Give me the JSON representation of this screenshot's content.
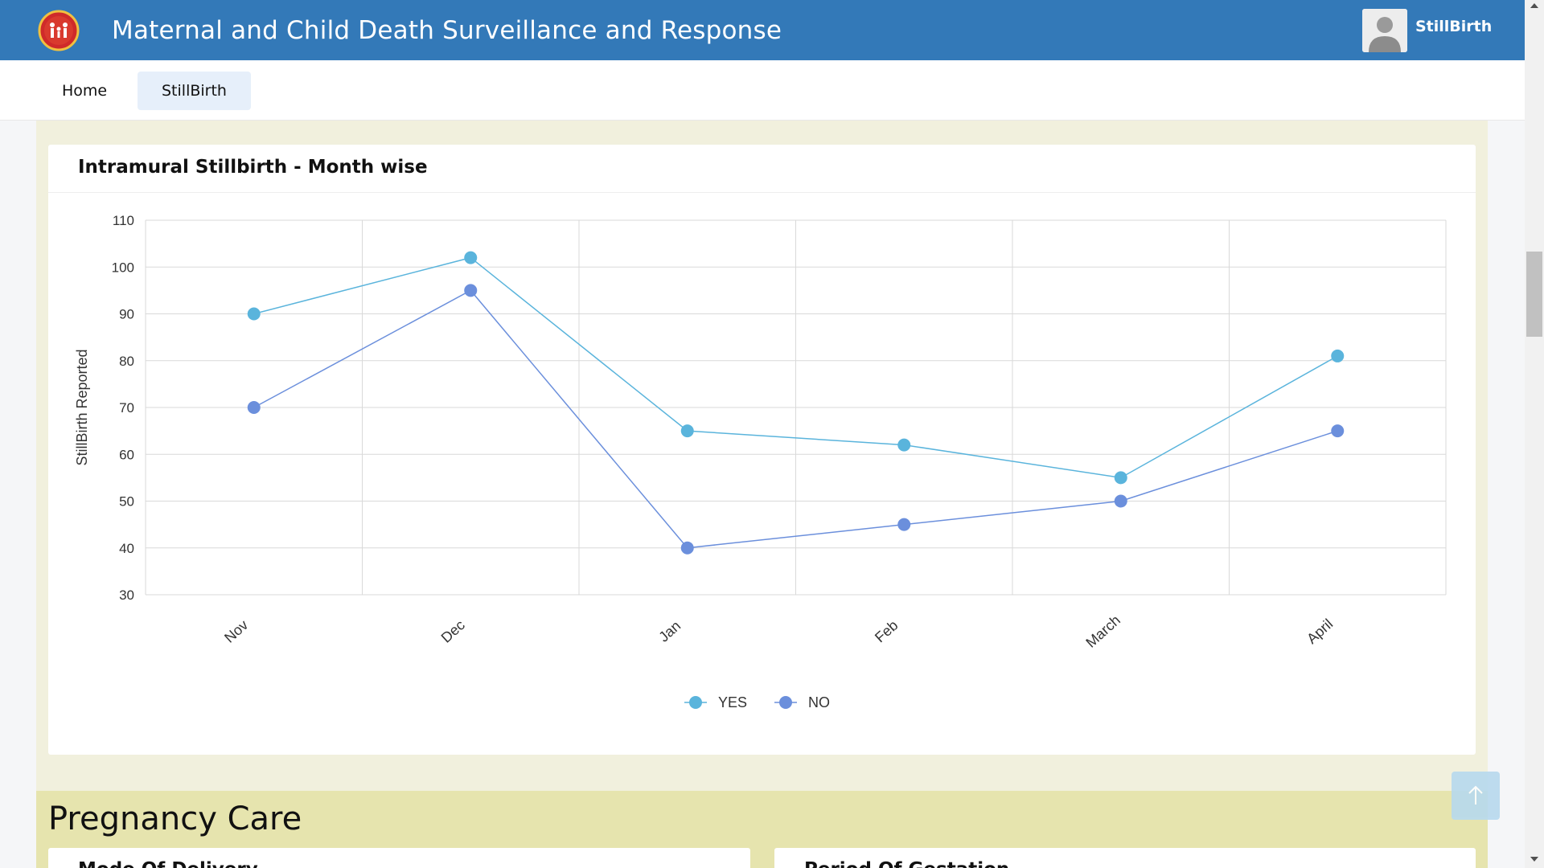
{
  "header": {
    "title": "Maternal and Child Death Surveillance and Response",
    "user_name": "StillBirth",
    "brand_color": "#3379b8",
    "logo_icon": "family-emblem-icon",
    "avatar_icon": "user-avatar-icon"
  },
  "nav": {
    "items": [
      {
        "label": "Home",
        "active": false
      },
      {
        "label": "StillBirth",
        "active": true
      }
    ]
  },
  "card": {
    "title": "Intramural Stillbirth - Month wise"
  },
  "chart_data": {
    "type": "line",
    "title": "Intramural Stillbirth - Month wise",
    "xlabel": "",
    "ylabel": "StillBirth Reported",
    "categories": [
      "Nov",
      "Dec",
      "Jan",
      "Feb",
      "March",
      "April"
    ],
    "ylim": [
      30,
      110
    ],
    "yticks": [
      110,
      100,
      90,
      80,
      70,
      60,
      50,
      40,
      30
    ],
    "grid": true,
    "legend": "bottom-center",
    "series": [
      {
        "name": "YES",
        "color": "#5ab4dc",
        "values": [
          90,
          102,
          65,
          62,
          55,
          81
        ]
      },
      {
        "name": "NO",
        "color": "#6b8fdc",
        "values": [
          70,
          95,
          40,
          45,
          50,
          65
        ]
      }
    ]
  },
  "section2": {
    "title": "Pregnancy Care",
    "cards": [
      "Mode Of Delivery",
      "Period Of Gestation"
    ]
  },
  "back_to_top_icon": "arrow-up-icon"
}
